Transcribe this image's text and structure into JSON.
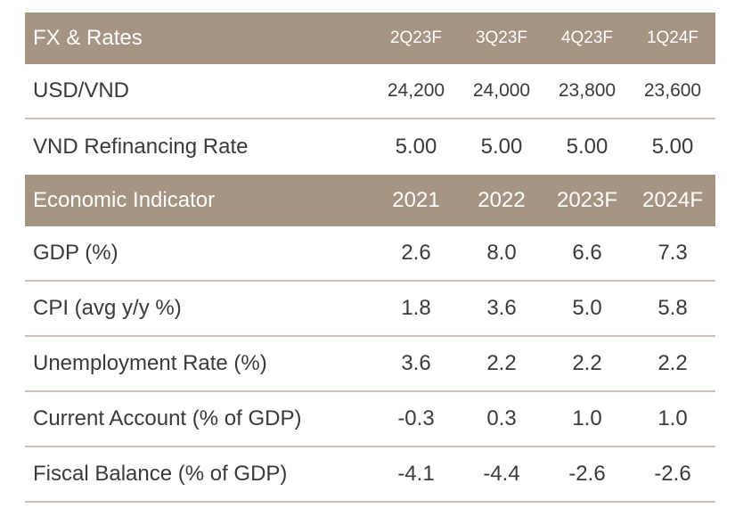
{
  "fx_rates": {
    "header": {
      "label": "FX & Rates",
      "columns": [
        "2Q23F",
        "3Q23F",
        "4Q23F",
        "1Q24F"
      ]
    },
    "rows": [
      {
        "label": "USD/VND",
        "values": [
          "24,200",
          "24,000",
          "23,800",
          "23,600"
        ]
      },
      {
        "label": "VND Refinancing Rate",
        "values": [
          "5.00",
          "5.00",
          "5.00",
          "5.00"
        ]
      }
    ]
  },
  "economic": {
    "header": {
      "label": "Economic Indicator",
      "columns": [
        "2021",
        "2022",
        "2023F",
        "2024F"
      ]
    },
    "rows": [
      {
        "label": "GDP (%)",
        "values": [
          "2.6",
          "8.0",
          "6.6",
          "7.3"
        ]
      },
      {
        "label": "CPI (avg y/y %)",
        "values": [
          "1.8",
          "3.6",
          "5.0",
          "5.8"
        ]
      },
      {
        "label": "Unemployment Rate (%)",
        "values": [
          "3.6",
          "2.2",
          "2.2",
          "2.2"
        ]
      },
      {
        "label": "Current Account (% of GDP)",
        "values": [
          "-0.3",
          "0.3",
          "1.0",
          "1.0"
        ]
      },
      {
        "label": "Fiscal Balance (% of GDP)",
        "values": [
          "-4.1",
          "-4.4",
          "-2.6",
          "-2.6"
        ]
      }
    ]
  },
  "colors": {
    "header_bg": "#a69482",
    "header_text": "#ffffff",
    "row_divider": "#cdbfb1",
    "body_text": "#3a3a3a"
  }
}
